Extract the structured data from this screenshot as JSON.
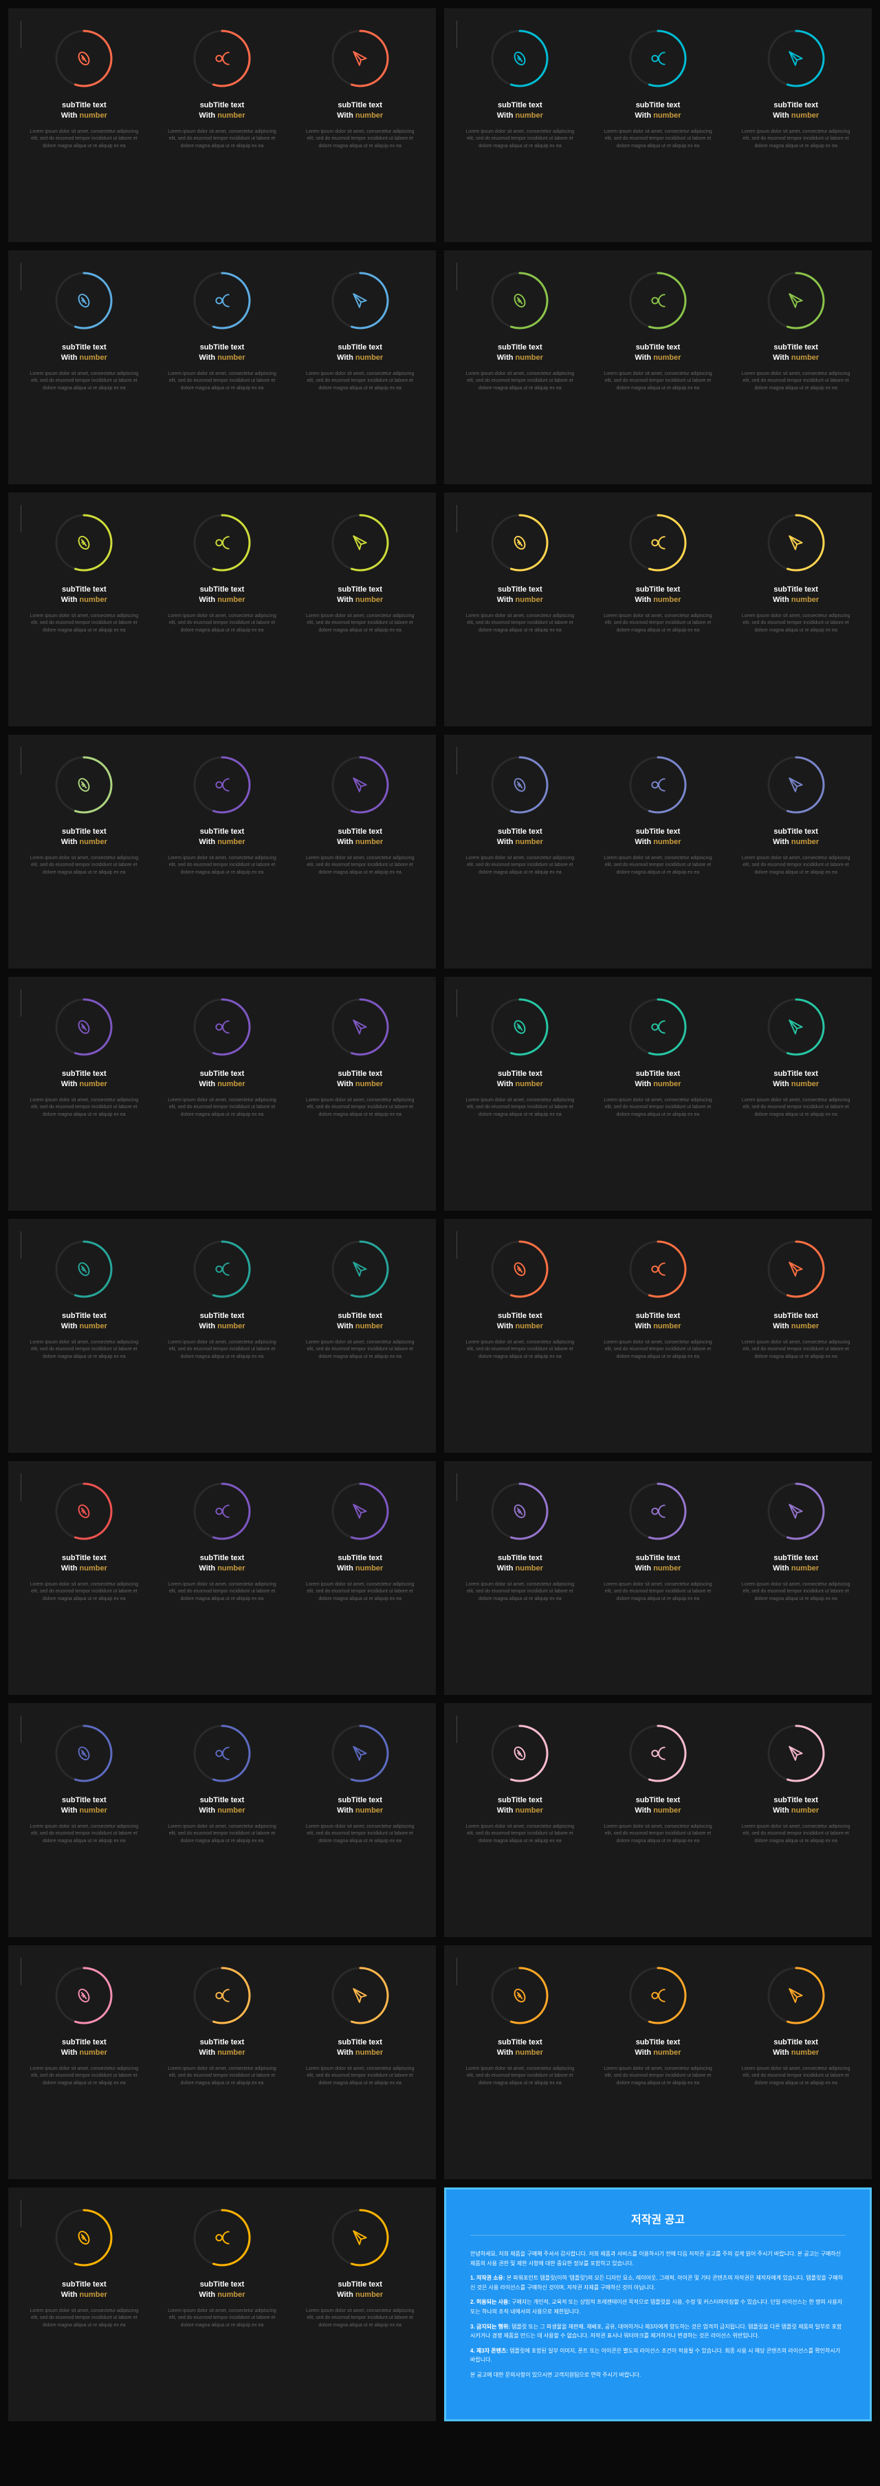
{
  "item_subtitle_line1": "subTitle text",
  "item_subtitle_line2_a": "With ",
  "item_subtitle_line2_b": "number",
  "item_desc": "Lorem ipsum dolor sit amet, consectetur adipiscing elit, sed do eiusmod tempor incididunt ut labore et dolore magna aliqua ut re aliquip ex ea",
  "icons": [
    "football",
    "user",
    "plane"
  ],
  "ring_percents": [
    55,
    55,
    55
  ],
  "ring_radius": 40,
  "ring_stroke": 3,
  "slides": [
    {
      "colors": [
        "#ff6b4a",
        "#ff6b4a",
        "#ff6b4a"
      ]
    },
    {
      "colors": [
        "#00bcd4",
        "#00bcd4",
        "#00bcd4"
      ]
    },
    {
      "colors": [
        "#5dade2",
        "#5dade2",
        "#5dade2"
      ]
    },
    {
      "colors": [
        "#8bc34a",
        "#8bc34a",
        "#8bc34a"
      ]
    },
    {
      "colors": [
        "#cddc39",
        "#cddc39",
        "#cddc39"
      ]
    },
    {
      "colors": [
        "#ffd54f",
        "#ffd54f",
        "#ffd54f"
      ]
    },
    {
      "colors": [
        "#aed581",
        "#7e57c2",
        "#7e57c2"
      ]
    },
    {
      "colors": [
        "#7986cb",
        "#7986cb",
        "#7986cb"
      ]
    },
    {
      "colors": [
        "#7e57c2",
        "#7e57c2",
        "#7e57c2"
      ]
    },
    {
      "colors": [
        "#26c6a4",
        "#26c6a4",
        "#26c6a4"
      ]
    },
    {
      "colors": [
        "#26a69a",
        "#26a69a",
        "#26a69a"
      ]
    },
    {
      "colors": [
        "#ff7043",
        "#ff7043",
        "#ff7043"
      ]
    },
    {
      "colors": [
        "#ef5350",
        "#7e57c2",
        "#7e57c2"
      ]
    },
    {
      "colors": [
        "#9575cd",
        "#9575cd",
        "#9575cd"
      ]
    },
    {
      "colors": [
        "#5c6bc0",
        "#5c6bc0",
        "#5c6bc0"
      ]
    },
    {
      "colors": [
        "#f8bbd0",
        "#f8bbd0",
        "#f8bbd0"
      ]
    },
    {
      "colors": [
        "#f48fb1",
        "#ffb74d",
        "#ffb74d"
      ]
    },
    {
      "colors": [
        "#ffa726",
        "#ffa726",
        "#ffa726"
      ]
    },
    {
      "colors": [
        "#ffb300",
        "#ffb300",
        "#ffb300"
      ]
    }
  ],
  "notice": {
    "title": "저작권 공고",
    "paragraphs": [
      "안녕하세요, 저희 제품을 구매해 주셔서 감사합니다. 저희 제품과 서비스를 이용하시기 전에 다음 저작권 공고를 주의 깊게 읽어 주시기 바랍니다. 본 공고는 구매하신 제품의 사용 권한 및 제한 사항에 대한 중요한 정보를 포함하고 있습니다.",
      "1. 저작권 소유: 본 파워포인트 템플릿(이하 '템플릿')의 모든 디자인 요소, 레이아웃, 그래픽, 아이콘 및 기타 콘텐츠의 저작권은 제작자에게 있습니다. 템플릿을 구매하신 것은 사용 라이선스를 구매하신 것이며, 저작권 자체를 구매하신 것이 아닙니다.",
      "2. 허용되는 사용: 구매자는 개인적, 교육적 또는 상업적 프레젠테이션 목적으로 템플릿을 사용, 수정 및 커스터마이징할 수 있습니다. 단일 라이선스는 한 명의 사용자 또는 하나의 조직 내에서의 사용으로 제한됩니다.",
      "3. 금지되는 행위: 템플릿 또는 그 파생물을 재판매, 재배포, 공유, 대여하거나 제3자에게 양도하는 것은 엄격히 금지됩니다. 템플릿을 다른 템플릿 제품의 일부로 포함시키거나 경쟁 제품을 만드는 데 사용할 수 없습니다. 저작권 표시나 워터마크를 제거하거나 변경하는 것은 라이선스 위반입니다.",
      "4. 제3자 콘텐츠: 템플릿에 포함된 일부 이미지, 폰트 또는 아이콘은 별도의 라이선스 조건이 적용될 수 있습니다. 최종 사용 시 해당 콘텐츠의 라이선스를 확인하시기 바랍니다.",
      "본 공고에 대한 문의사항이 있으시면 고객지원팀으로 연락 주시기 바랍니다."
    ]
  }
}
